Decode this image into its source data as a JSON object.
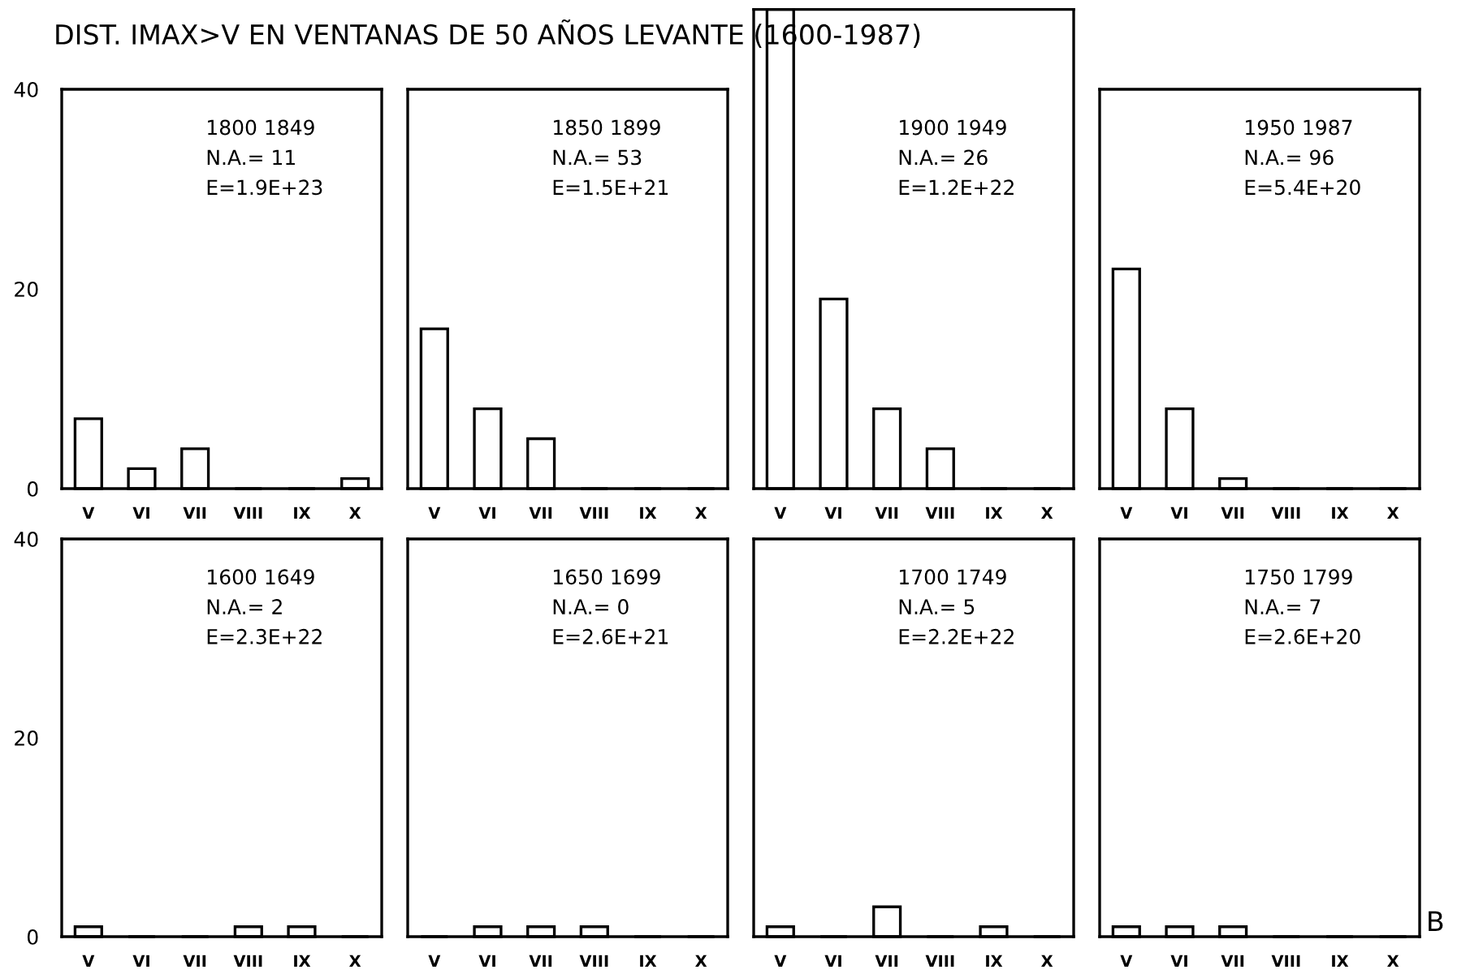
{
  "chart_data": [
    {
      "type": "bar",
      "title": "DIST. IMAX>V EN VENTANAS DE 50 AÑOS LEVANTE (1600-1987)",
      "categories": [
        "V",
        "VI",
        "VII",
        "VIII",
        "IX",
        "X"
      ],
      "values": [
        7,
        2,
        4,
        0,
        0,
        1
      ],
      "color": "#ffffff",
      "ylim": [
        0,
        40
      ],
      "yticks": [
        0,
        20,
        40
      ],
      "annotations": [
        "1800 1849",
        "N.A.= 11",
        "E=1.9E+23"
      ]
    },
    {
      "type": "bar",
      "categories": [
        "V",
        "VI",
        "VII",
        "VIII",
        "IX",
        "X"
      ],
      "values": [
        16,
        8,
        5,
        0,
        0,
        0
      ],
      "color": "#ffffff",
      "ylim": [
        0,
        40
      ],
      "yticks": [
        0,
        20,
        40
      ],
      "tick_labels": "x",
      "annotations": [
        "1850 1899",
        "N.A.= 53",
        "E=1.5E+21"
      ]
    },
    {
      "type": "bar",
      "categories": [
        "V",
        "VI",
        "VII",
        "VIII",
        "IX",
        "X"
      ],
      "values": [
        48,
        19,
        8,
        4,
        0,
        0
      ],
      "color": "#ffffff",
      "ylim": [
        0,
        48
      ],
      "yticks": [
        0,
        20,
        40
      ],
      "tick_labels": "x",
      "annotations": [
        "1900 1949",
        "N.A.= 26",
        "E=1.2E+22"
      ]
    },
    {
      "type": "bar",
      "categories": [
        "V",
        "VI",
        "VII",
        "VIII",
        "IX",
        "X"
      ],
      "values": [
        22,
        8,
        1,
        0,
        0,
        0
      ],
      "color": "#ffffff",
      "ylim": [
        0,
        40
      ],
      "yticks": [
        0,
        20,
        40
      ],
      "tick_labels": "x",
      "annotations": [
        "1950 1987",
        "N.A.= 96",
        "E=5.4E+20"
      ]
    },
    {
      "type": "bar",
      "categories": [
        "V",
        "VI",
        "VII",
        "VIII",
        "IX",
        "X"
      ],
      "values": [
        1,
        0,
        0,
        1,
        1,
        0
      ],
      "color": "#ffffff",
      "ylim": [
        0,
        40
      ],
      "yticks": [
        0,
        20,
        40
      ],
      "annotations": [
        "1600 1649",
        "N.A.= 2",
        "E=2.3E+22"
      ]
    },
    {
      "type": "bar",
      "categories": [
        "V",
        "VI",
        "VII",
        "VIII",
        "IX",
        "X"
      ],
      "values": [
        0,
        1,
        1,
        1,
        0,
        0
      ],
      "color": "#ffffff",
      "ylim": [
        0,
        40
      ],
      "yticks": [
        0,
        20,
        40
      ],
      "tick_labels": "x",
      "annotations": [
        "1650 1699",
        "N.A.= 0",
        "E=2.6E+21"
      ]
    },
    {
      "type": "bar",
      "categories": [
        "V",
        "VI",
        "VII",
        "VIII",
        "IX",
        "X"
      ],
      "values": [
        1,
        0,
        3,
        0,
        1,
        0
      ],
      "color": "#ffffff",
      "ylim": [
        0,
        40
      ],
      "yticks": [
        0,
        20,
        40
      ],
      "tick_labels": "x",
      "annotations": [
        "1700 1749",
        "N.A.= 5",
        "E=2.2E+22"
      ]
    },
    {
      "type": "bar",
      "categories": [
        "V",
        "VI",
        "VII",
        "VIII",
        "IX",
        "X"
      ],
      "values": [
        1,
        1,
        1,
        0,
        0,
        0
      ],
      "color": "#ffffff",
      "ylim": [
        0,
        40
      ],
      "yticks": [
        0,
        20,
        40
      ],
      "tick_labels": "x",
      "annotations": [
        "1750 1799",
        "N.A.= 7",
        "E=2.6E+20",
        "B"
      ]
    }
  ]
}
